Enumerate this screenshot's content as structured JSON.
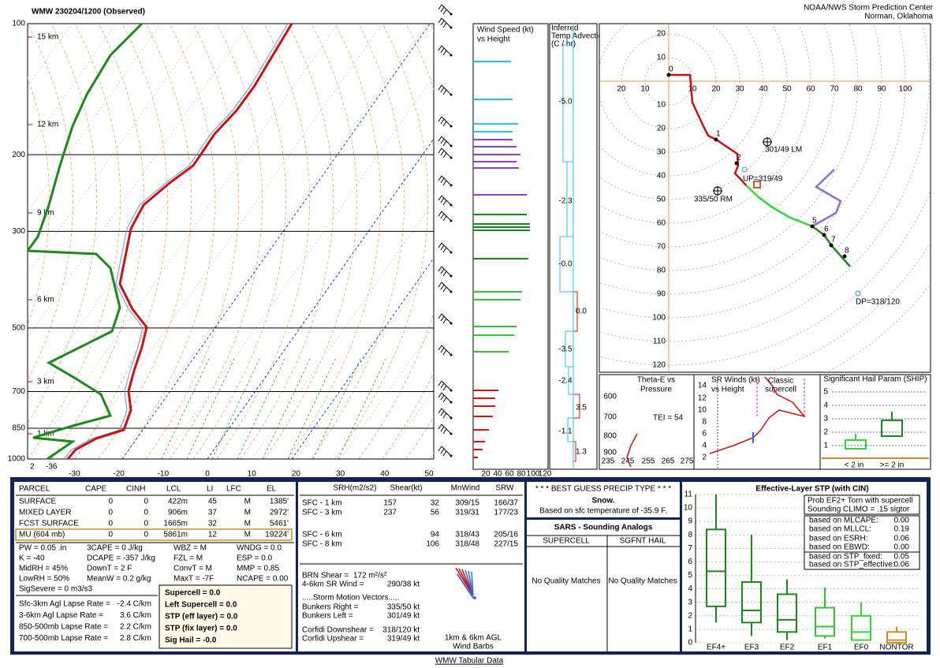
{
  "header": {
    "station_time": "WMW   230204/1200  (Observed)",
    "org": "NOAA/NWS Storm Prediction Center",
    "location": "Norman, Oklahoma"
  },
  "skewt": {
    "pressure_labels": [
      100,
      200,
      300,
      500,
      700,
      850,
      1000
    ],
    "height_labels": [
      "15 km",
      "12 km",
      "9 km",
      "6 km",
      "3 km",
      "1 km"
    ],
    "temp_labels": [
      -30,
      -20,
      -10,
      0,
      10,
      20,
      30,
      40,
      50
    ],
    "surface_labels": [
      2,
      -36
    ]
  },
  "wind_speed": {
    "title_lines": [
      "Wind Speed (kt)",
      "vs Height"
    ],
    "ticks": [
      20,
      40,
      60,
      80,
      100,
      120
    ]
  },
  "temp_advection": {
    "title_lines": [
      "Inferred",
      "Temp Advection",
      "(C / hr)"
    ],
    "values": [
      "-5.0",
      "-2.3",
      "-0.0",
      "0.0",
      "-3.5",
      "-2.4",
      "3.5",
      "-1.1",
      "1.3"
    ]
  },
  "hodograph": {
    "up_labels": [
      20,
      10
    ],
    "down_labels": [
      10,
      20,
      30,
      40,
      50,
      60,
      70,
      80,
      90,
      100,
      110,
      120
    ],
    "left_labels": [
      20,
      10
    ],
    "right_labels": [
      10,
      20,
      30,
      40,
      50,
      60,
      70,
      80,
      90,
      100
    ],
    "height_labels": [
      0,
      1,
      2,
      5,
      6,
      7,
      8
    ],
    "annotations": [
      "301/49 LM",
      "335/50 RM",
      "UP=319/49",
      "DP=318/120"
    ]
  },
  "theta_e": {
    "title_lines": [
      "Theta-E vs",
      "Pressure"
    ],
    "yticks": [
      600,
      700,
      800,
      900
    ],
    "xticks": [
      235,
      245,
      255,
      265,
      275
    ],
    "tei": "TEI = 54"
  },
  "sr_winds": {
    "title_lines": [
      "SR Winds (kt)",
      "vs Height"
    ],
    "ticks": [
      14,
      12,
      10,
      8,
      6,
      4,
      2
    ],
    "label_lines": [
      "Classic",
      "supercell"
    ]
  },
  "ship": {
    "title": "Significant Hail Param (SHIP)",
    "ticks": [
      5,
      4,
      3,
      2,
      1
    ],
    "x_labels": [
      "< 2 in",
      ">= 2 in"
    ]
  },
  "parcel": {
    "headers": [
      "PARCEL",
      "CAPE",
      "CINH",
      "LCL",
      "LI",
      "LFC",
      "EL"
    ],
    "rows": [
      [
        "SURFACE",
        "0",
        "0",
        "422m",
        "45",
        "M",
        "1385'"
      ],
      [
        "MIXED LAYER",
        "0",
        "0",
        "906m",
        "37",
        "M",
        "2972'"
      ],
      [
        "FCST SURFACE",
        "0",
        "0",
        "1665m",
        "32",
        "M",
        "5461'"
      ],
      [
        "MU   (604 mb)",
        "0",
        "0",
        "5861m",
        "12",
        "M",
        "19224'"
      ]
    ]
  },
  "indices": [
    [
      "PW = 0.05 .in",
      "3CAPE = 0 J/kg",
      "WBZ = M",
      "WNDG = 0.0"
    ],
    [
      "K = -40",
      "DCAPE = -357 J/kg",
      "FZL = M",
      "ESP = 0.0"
    ],
    [
      "MidRH = 45%",
      "DownT = 2 F",
      "ConvT = M",
      "MMP = 0.85"
    ],
    [
      "LowRH = 50%",
      "MeanW = 0.2 g/kg",
      "MaxT = -7F",
      "NCAPE = 0.00"
    ]
  ],
  "sig_severe": "SigSevere = 0 m3/s3",
  "lapse": [
    [
      "Sfc-3km Agl Lapse Rate =",
      "-2.4 C/km"
    ],
    [
      "3-6km Agl Lapse Rate =",
      "3.6 C/km"
    ],
    [
      "850-500mb Lapse Rate =",
      "2.2 C/km"
    ],
    [
      "700-500mb Lapse Rate =",
      "2.8 C/km"
    ]
  ],
  "composite": [
    "Supercell = 0.0",
    "Left Supercell = 0.0",
    "STP (eff layer) = 0.0",
    "STP (fix layer) = 0.0",
    "Sig Hail = -0.0"
  ],
  "kinematics": {
    "headers": [
      "SRH(m2/s2)",
      "Shear(kt)",
      "MnWind",
      "SRW"
    ],
    "rows": [
      {
        "label": "SFC - 1 km",
        "srh": "157",
        "shear": "32",
        "mnwind": "309/15",
        "srw": "166/37"
      },
      {
        "label": "SFC - 3 km",
        "srh": "237",
        "shear": "56",
        "mnwind": "319/31",
        "srw": "177/23"
      },
      {
        "label": "SFC - 6 km",
        "shear": "94",
        "mnwind": "318/43",
        "srw": "205/16"
      },
      {
        "label": "SFC - 8 km",
        "shear": "106",
        "mnwind": "318/48",
        "srw": "227/15"
      }
    ],
    "brn": [
      "BRN Shear =",
      "172 m²/s²"
    ],
    "sr_wind": [
      "4-6km SR Wind =",
      "290/38 kt"
    ],
    "storm_title": ".....Storm Motion Vectors.....",
    "storm_rows": [
      [
        "Bunkers Right =",
        "335/50 kt"
      ],
      [
        "Bunkers Left =",
        "301/49 kt"
      ]
    ],
    "corfidi_rows": [
      [
        "Corfidi Downshear =",
        "318/120 kt"
      ],
      [
        "Corfidi Upshear =",
        "319/49 kt"
      ]
    ],
    "barb_legend": [
      "1km & 6km AGL",
      "Wind Barbs"
    ]
  },
  "precip": {
    "title": "* * * BEST GUESS PRECIP TYPE * * *",
    "type": "Snow.",
    "basis": "Based on sfc temperature of -35.9 F."
  },
  "sars": {
    "title": "SARS - Sounding Analogs",
    "columns": [
      "SUPERCELL",
      "SGFNT HAIL"
    ],
    "notes": [
      "No Quality Matches",
      "No Quality Matches"
    ]
  },
  "stp": {
    "title": "Effective-Layer STP (with CIN)",
    "yticks": [
      0,
      1,
      2,
      3,
      4,
      5,
      6,
      7,
      8,
      9,
      10,
      11
    ],
    "categories": [
      "EF4+",
      "EF3",
      "EF2",
      "EF1",
      "EF0",
      "NONTOR"
    ],
    "prob": [
      "Prob EF2+ Torn with supercell",
      "Sounding CLIMO = .15 sigtor"
    ],
    "based": [
      [
        "based on MLCAPE:",
        "0.00"
      ],
      [
        "based on MLLCL:",
        "0.19"
      ],
      [
        "based on ESRH:",
        "0.06"
      ],
      [
        "based on EBWD:",
        "0.00"
      ],
      [
        "based on STP_fixed:",
        "0.05"
      ],
      [
        "based on STP_effective:",
        "0.06"
      ]
    ]
  },
  "footer": "WMW Tabular Data"
}
